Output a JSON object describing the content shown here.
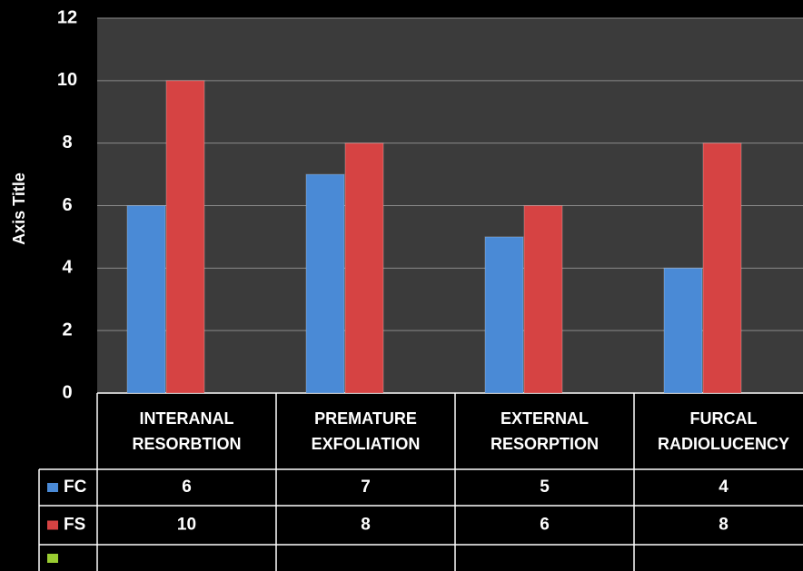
{
  "chart_data": {
    "type": "bar",
    "y_axis_label": "Axis Title",
    "categories": [
      "INTERANAL RESORBTION",
      "PREMATURE EXFOLIATION",
      "EXTERNAL RESORPTION",
      "FURCAL RADIOLUCENCY"
    ],
    "series": [
      {
        "name": "FC",
        "color": "#4a8ad6",
        "values": [
          6,
          7,
          5,
          4
        ]
      },
      {
        "name": "FS",
        "color": "#d64343",
        "values": [
          10,
          8,
          6,
          8
        ]
      }
    ],
    "ylim": [
      0,
      12
    ],
    "yticks": [
      0,
      2,
      4,
      6,
      8,
      10,
      12
    ],
    "grid": true
  }
}
